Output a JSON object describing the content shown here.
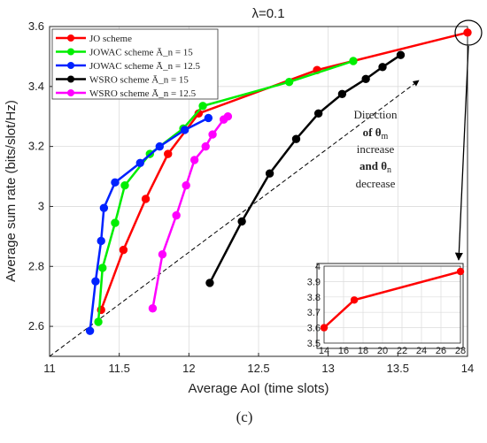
{
  "chart_data": {
    "type": "line",
    "title": "λ=0.1",
    "xlabel": "Average AoI (time slots)",
    "ylabel": "Average sum rate (bits/slot/Hz)",
    "xlim": [
      11,
      14
    ],
    "ylim": [
      2.5,
      3.6
    ],
    "xticks": [
      "11",
      "11.5",
      "12",
      "12.5",
      "13",
      "13.5",
      "14"
    ],
    "yticks": [
      "2.6",
      "2.8",
      "3",
      "3.2",
      "3.4",
      "3.6"
    ],
    "grid": true,
    "legend_position": "top-left",
    "caption": "(c)",
    "series": [
      {
        "name": "JO scheme",
        "color": "#ff0000",
        "x": [
          11.37,
          11.53,
          11.69,
          11.85,
          12.07,
          12.92,
          14.0
        ],
        "y": [
          2.655,
          2.855,
          3.025,
          3.175,
          3.31,
          3.455,
          3.58
        ]
      },
      {
        "name": "JOWAC scheme Ā_n = 15",
        "color": "#00ee00",
        "x": [
          11.35,
          11.38,
          11.47,
          11.54,
          11.72,
          11.96,
          12.1,
          12.72,
          13.18
        ],
        "y": [
          2.615,
          2.795,
          2.945,
          3.07,
          3.175,
          3.26,
          3.335,
          3.415,
          3.485
        ]
      },
      {
        "name": "JOWAC scheme Ā_n = 12.5",
        "color": "#0022ff",
        "x": [
          11.29,
          11.33,
          11.37,
          11.39,
          11.47,
          11.65,
          11.79,
          11.97,
          12.14
        ],
        "y": [
          2.585,
          2.75,
          2.885,
          2.995,
          3.08,
          3.145,
          3.2,
          3.255,
          3.295
        ]
      },
      {
        "name": "WSRO scheme Ā_n = 15",
        "color": "#000000",
        "x": [
          12.15,
          12.38,
          12.58,
          12.77,
          12.93,
          13.1,
          13.27,
          13.39,
          13.52
        ],
        "y": [
          2.745,
          2.95,
          3.11,
          3.225,
          3.31,
          3.375,
          3.425,
          3.465,
          3.505
        ]
      },
      {
        "name": "WSRO scheme Ā_n = 12.5",
        "color": "#ff00ff",
        "x": [
          11.74,
          11.81,
          11.91,
          11.98,
          12.04,
          12.12,
          12.17,
          12.25,
          12.28
        ],
        "y": [
          2.66,
          2.84,
          2.97,
          3.07,
          3.155,
          3.2,
          3.24,
          3.29,
          3.3
        ]
      }
    ],
    "annotation": {
      "lines": [
        "Direction",
        "of θ",
        "increase",
        "and θ",
        "decrease"
      ],
      "subscripts": [
        "m",
        "n"
      ],
      "arrow_from": [
        11,
        2.5
      ],
      "arrow_to": [
        13.65,
        3.42
      ]
    },
    "inset": {
      "type": "line",
      "xlim": [
        14,
        28
      ],
      "ylim": [
        3.5,
        4.0
      ],
      "xticks": [
        "14",
        "16",
        "18",
        "20",
        "22",
        "24",
        "26",
        "28"
      ],
      "yticks": [
        "3.5",
        "3.6",
        "3.7",
        "3.8",
        "3.9",
        "4"
      ],
      "series": [
        {
          "name": "JO scheme",
          "color": "#ff0000",
          "x": [
            14.0,
            17.1,
            28.0
          ],
          "y": [
            3.6,
            3.78,
            3.965
          ]
        }
      ]
    }
  }
}
